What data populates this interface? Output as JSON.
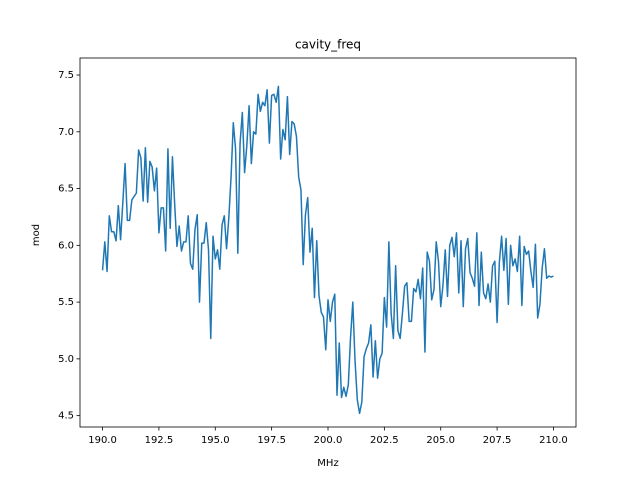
{
  "chart_data": {
    "type": "line",
    "title": "cavity_freq",
    "x_label": "MHz",
    "y_label": "mod",
    "color": "#1f77b4",
    "x": [
      190.0,
      190.1,
      190.2,
      190.3,
      190.4,
      190.5,
      190.6,
      190.7,
      190.8,
      190.9,
      191.0,
      191.1,
      191.2,
      191.3,
      191.4,
      191.5,
      191.6,
      191.7,
      191.8,
      191.9,
      192.0,
      192.1,
      192.2,
      192.3,
      192.4,
      192.5,
      192.6,
      192.7,
      192.8,
      192.9,
      193.0,
      193.1,
      193.2,
      193.3,
      193.4,
      193.5,
      193.6,
      193.7,
      193.8,
      193.9,
      194.0,
      194.1,
      194.2,
      194.3,
      194.4,
      194.5,
      194.6,
      194.7,
      194.8,
      194.9,
      195.0,
      195.1,
      195.2,
      195.3,
      195.4,
      195.5,
      195.6,
      195.7,
      195.8,
      195.9,
      196.0,
      196.1,
      196.2,
      196.3,
      196.4,
      196.5,
      196.6,
      196.7,
      196.8,
      196.9,
      197.0,
      197.1,
      197.2,
      197.3,
      197.4,
      197.5,
      197.6,
      197.7,
      197.8,
      197.9,
      198.0,
      198.1,
      198.2,
      198.3,
      198.4,
      198.5,
      198.6,
      198.7,
      198.8,
      198.9,
      199.0,
      199.1,
      199.2,
      199.3,
      199.4,
      199.5,
      199.6,
      199.7,
      199.8,
      199.9,
      200.0,
      200.1,
      200.2,
      200.3,
      200.4,
      200.5,
      200.6,
      200.7,
      200.8,
      200.9,
      201.0,
      201.1,
      201.2,
      201.3,
      201.4,
      201.5,
      201.6,
      201.7,
      201.8,
      201.9,
      202.0,
      202.1,
      202.2,
      202.3,
      202.4,
      202.5,
      202.6,
      202.7,
      202.8,
      202.9,
      203.0,
      203.1,
      203.2,
      203.3,
      203.4,
      203.5,
      203.6,
      203.7,
      203.8,
      203.9,
      204.0,
      204.1,
      204.2,
      204.3,
      204.4,
      204.5,
      204.6,
      204.7,
      204.8,
      204.9,
      205.0,
      205.1,
      205.2,
      205.3,
      205.4,
      205.5,
      205.6,
      205.7,
      205.8,
      205.9,
      206.0,
      206.1,
      206.2,
      206.3,
      206.4,
      206.5,
      206.6,
      206.7,
      206.8,
      206.9,
      207.0,
      207.1,
      207.2,
      207.3,
      207.4,
      207.5,
      207.6,
      207.7,
      207.8,
      207.9,
      208.0,
      208.1,
      208.2,
      208.3,
      208.4,
      208.5,
      208.6,
      208.7,
      208.8,
      208.9,
      209.0,
      209.1,
      209.2,
      209.3,
      209.4,
      209.5,
      209.6,
      209.7,
      209.8,
      209.9,
      210.0
    ],
    "values": [
      5.78,
      6.03,
      5.77,
      6.26,
      6.12,
      6.12,
      6.04,
      6.35,
      6.05,
      6.38,
      6.72,
      6.22,
      6.22,
      6.4,
      6.43,
      6.46,
      6.84,
      6.77,
      6.39,
      6.86,
      6.38,
      6.74,
      6.69,
      6.48,
      6.68,
      6.11,
      6.33,
      6.33,
      5.95,
      6.85,
      6.15,
      6.78,
      6.36,
      5.99,
      6.17,
      5.95,
      6.03,
      6.03,
      6.26,
      5.84,
      5.79,
      6.14,
      6.27,
      5.5,
      6.02,
      6.02,
      6.2,
      5.96,
      5.18,
      6.08,
      5.88,
      5.96,
      5.79,
      6.18,
      6.26,
      5.97,
      6.24,
      6.6,
      7.08,
      6.85,
      5.93,
      6.9,
      7.17,
      6.64,
      6.88,
      7.23,
      6.72,
      7.0,
      6.98,
      7.33,
      7.18,
      7.26,
      7.23,
      7.37,
      6.9,
      7.32,
      7.33,
      7.26,
      7.4,
      6.76,
      7.02,
      6.93,
      7.31,
      6.8,
      7.09,
      7.07,
      6.96,
      6.6,
      6.49,
      5.83,
      6.27,
      6.42,
      5.94,
      6.15,
      5.54,
      6.04,
      5.56,
      5.41,
      5.37,
      5.08,
      5.52,
      5.33,
      5.5,
      5.57,
      4.68,
      5.14,
      4.66,
      4.75,
      4.67,
      4.77,
      5.19,
      5.5,
      4.98,
      4.64,
      4.52,
      4.62,
      5.02,
      5.09,
      5.14,
      5.3,
      4.84,
      5.16,
      4.83,
      5.0,
      5.05,
      5.54,
      5.28,
      6.03,
      5.4,
      5.18,
      5.82,
      5.25,
      5.18,
      5.4,
      5.64,
      5.67,
      5.33,
      5.33,
      5.62,
      5.59,
      5.7,
      5.53,
      5.8,
      5.06,
      5.94,
      5.86,
      5.52,
      5.61,
      6.03,
      5.86,
      5.46,
      5.65,
      5.96,
      5.55,
      6.0,
      6.07,
      5.9,
      6.11,
      5.58,
      6.04,
      5.46,
      5.97,
      6.06,
      5.76,
      5.71,
      5.64,
      6.11,
      5.47,
      5.94,
      5.58,
      5.53,
      5.66,
      5.5,
      5.82,
      5.86,
      5.32,
      5.85,
      6.08,
      5.78,
      6.06,
      5.48,
      6.0,
      5.82,
      5.88,
      5.77,
      6.08,
      5.47,
      5.99,
      5.92,
      5.95,
      5.77,
      5.63,
      6.01,
      5.36,
      5.48,
      5.8,
      5.97,
      5.71,
      5.73,
      5.72,
      5.73
    ],
    "xlim": [
      189,
      211
    ],
    "ylim": [
      4.4,
      7.65
    ],
    "xticks": [
      {
        "value": 190,
        "label": "190.0"
      },
      {
        "value": 192.5,
        "label": "192.5"
      },
      {
        "value": 195,
        "label": "195.0"
      },
      {
        "value": 197.5,
        "label": "197.5"
      },
      {
        "value": 200,
        "label": "200.0"
      },
      {
        "value": 202.5,
        "label": "202.5"
      },
      {
        "value": 205,
        "label": "205.0"
      },
      {
        "value": 207.5,
        "label": "207.5"
      },
      {
        "value": 210,
        "label": "210.0"
      }
    ],
    "yticks": [
      4.5,
      {
        "value": 5,
        "label": "5.0"
      },
      5.5,
      {
        "value": 6,
        "label": "6.0"
      },
      6.5,
      {
        "value": 7,
        "label": "7.0"
      },
      7.5
    ]
  }
}
